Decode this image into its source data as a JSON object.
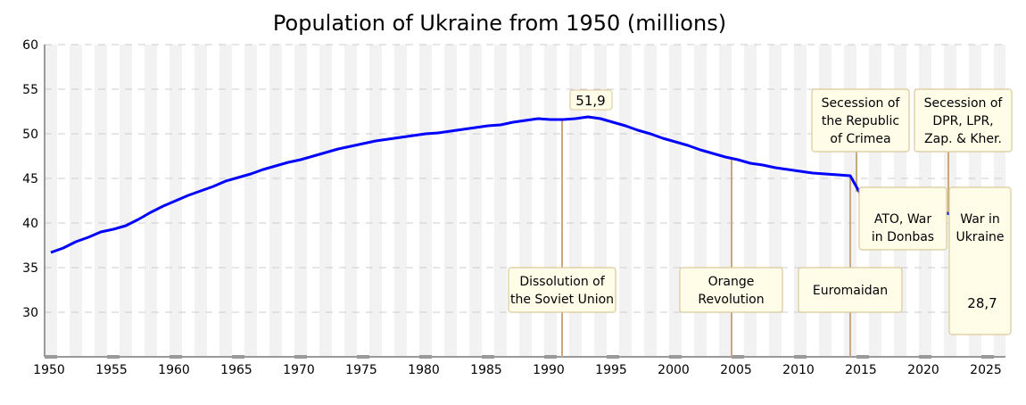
{
  "chart_data": {
    "type": "line",
    "title": "Population of Ukraine from 1950 (millions)",
    "xlabel": "",
    "ylabel": "",
    "xlim": [
      1949.5,
      2026.5
    ],
    "ylim": [
      25,
      60
    ],
    "grid": true,
    "x_ticks": [
      "1950",
      "1955",
      "1960",
      "1965",
      "1970",
      "1975",
      "1980",
      "1985",
      "1990",
      "1995",
      "2000",
      "2005",
      "2010",
      "2015",
      "2020",
      "2025"
    ],
    "y_ticks": [
      "30",
      "35",
      "40",
      "45",
      "50",
      "55",
      "60"
    ],
    "series": [
      {
        "color": "#0000ff",
        "x": [
          1950,
          1951,
          1952,
          1953,
          1954,
          1955,
          1956,
          1957,
          1958,
          1959,
          1960,
          1961,
          1962,
          1963,
          1964,
          1965,
          1966,
          1967,
          1968,
          1969,
          1970,
          1971,
          1972,
          1973,
          1974,
          1975,
          1976,
          1977,
          1978,
          1979,
          1980,
          1981,
          1982,
          1983,
          1984,
          1985,
          1986,
          1987,
          1988,
          1989,
          1990,
          1991,
          1992,
          1993,
          1994,
          1995,
          1996,
          1997,
          1998,
          1999,
          2000,
          2001,
          2002,
          2003,
          2004,
          2005,
          2006,
          2007,
          2008,
          2009,
          2010,
          2011,
          2012,
          2013,
          2014,
          2015,
          2016,
          2017,
          2018,
          2019,
          2020,
          2021,
          2022,
          2022,
          2025
        ],
        "y": [
          36.7,
          37.2,
          37.9,
          38.4,
          39.0,
          39.3,
          39.7,
          40.4,
          41.2,
          41.9,
          42.5,
          43.1,
          43.6,
          44.1,
          44.7,
          45.1,
          45.5,
          46.0,
          46.4,
          46.8,
          47.1,
          47.5,
          47.9,
          48.3,
          48.6,
          48.9,
          49.2,
          49.4,
          49.6,
          49.8,
          50.0,
          50.1,
          50.3,
          50.5,
          50.7,
          50.9,
          51.0,
          51.3,
          51.5,
          51.7,
          51.6,
          51.6,
          51.7,
          51.9,
          51.7,
          51.3,
          50.9,
          50.4,
          50.0,
          49.5,
          49.1,
          48.7,
          48.2,
          47.8,
          47.4,
          47.1,
          46.7,
          46.5,
          46.2,
          46.0,
          45.8,
          45.6,
          45.5,
          45.4,
          45.3,
          42.8,
          42.6,
          42.4,
          42.2,
          42.2,
          41.7,
          41.4,
          41.0,
          31.0,
          28.7
        ]
      }
    ],
    "data_labels": [
      {
        "text": "51,9",
        "x": 1993,
        "y": 51.9
      },
      {
        "text": "28,7",
        "x": 2025,
        "y": 28.7
      }
    ],
    "annotations": [
      {
        "lines": [
          "Dissolution of",
          "the Soviet Union"
        ],
        "year": 1991
      },
      {
        "lines": [
          "Orange",
          "Revolution"
        ],
        "year": 2004.5
      },
      {
        "lines": [
          "Euromaidan"
        ],
        "year": 2014
      },
      {
        "lines": [
          "Secession of",
          "the Republic",
          "of Crimea"
        ],
        "year": 2014.5
      },
      {
        "lines": [
          "ATO, War",
          "in Donbas"
        ],
        "year": 2014.5
      },
      {
        "lines": [
          "Secession of",
          "DPR, LPR,",
          "Zap. & Kher."
        ],
        "year": 2022
      },
      {
        "lines": [
          "War in",
          "Ukraine"
        ],
        "year": 2022
      }
    ],
    "colors": {
      "stripe": "#f2f2f2",
      "grid": "#cccccc",
      "annotation_box": "#fffde8",
      "annotation_border": "#d9c99c",
      "annotation_line": "#c9a97c"
    }
  }
}
